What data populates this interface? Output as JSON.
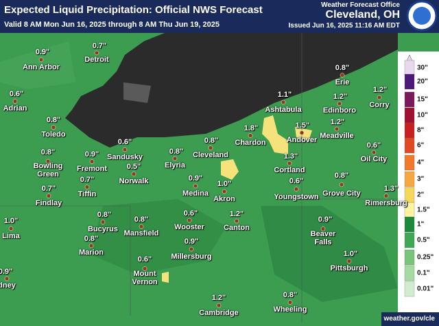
{
  "header": {
    "title": "Expected Liquid Precipitation: Official NWS Forecast",
    "subtitle": "Valid 8 AM Mon Jun 16, 2025 through 8 AM Thu Jun 19, 2025",
    "office": "Weather Forecast Office",
    "location": "Cleveland, OH",
    "issued": "Issued Jun 16, 2025 11:16 AM EDT"
  },
  "cities": [
    {
      "name": "Ann Arbor",
      "amount": "0.9\""
    },
    {
      "name": "Detroit",
      "amount": "0.7\""
    },
    {
      "name": "Adrian",
      "amount": "0.6\""
    },
    {
      "name": "Toledo",
      "amount": "0.8\""
    },
    {
      "name": "Bowling Green",
      "amount": "0.8\""
    },
    {
      "name": "Fremont",
      "amount": "0.9\""
    },
    {
      "name": "Sandusky",
      "amount": "0.6\""
    },
    {
      "name": "Norwalk",
      "amount": "0.5\""
    },
    {
      "name": "Elyria",
      "amount": "0.8\""
    },
    {
      "name": "Cleveland",
      "amount": "0.8\""
    },
    {
      "name": "Findlay",
      "amount": "0.7\""
    },
    {
      "name": "Tiffin",
      "amount": "0.7\""
    },
    {
      "name": "Medina",
      "amount": "0.9\""
    },
    {
      "name": "Akron",
      "amount": "1.0\""
    },
    {
      "name": "Lima",
      "amount": "1.0\""
    },
    {
      "name": "Bucyrus",
      "amount": "0.8\""
    },
    {
      "name": "Marion",
      "amount": "0.8\""
    },
    {
      "name": "Mansfield",
      "amount": "0.8\""
    },
    {
      "name": "Wooster",
      "amount": "0.6\""
    },
    {
      "name": "Canton",
      "amount": "1.2\""
    },
    {
      "name": "Millersburg",
      "amount": "0.9\""
    },
    {
      "name": "Mount Vernon",
      "amount": "0.6\""
    },
    {
      "name": "dney",
      "amount": "0.9\""
    },
    {
      "name": "Ashtabula",
      "amount": "1.1\""
    },
    {
      "name": "Chardon",
      "amount": "1.8\""
    },
    {
      "name": "Andover",
      "amount": "1.5\""
    },
    {
      "name": "Cortland",
      "amount": "1.3\""
    },
    {
      "name": "Youngstown",
      "amount": "0.6\""
    },
    {
      "name": "Erie",
      "amount": "0.8\""
    },
    {
      "name": "Edinboro",
      "amount": "1.2\""
    },
    {
      "name": "Corry",
      "amount": "1.2\""
    },
    {
      "name": "Meadville",
      "amount": "1.2\""
    },
    {
      "name": "Oil City",
      "amount": "0.6\""
    },
    {
      "name": "Grove City",
      "amount": "0.8\""
    },
    {
      "name": "Rimersburg",
      "amount": "1.3\""
    },
    {
      "name": "Beaver Falls",
      "amount": "0.9\""
    },
    {
      "name": "Pittsburgh",
      "amount": "1.0\""
    },
    {
      "name": "Wheeling",
      "amount": "0.8\""
    },
    {
      "name": "Cambridge",
      "amount": "1.2\""
    }
  ],
  "legend": {
    "labels": [
      "30\"",
      "20\"",
      "15\"",
      "10\"",
      "8\"",
      "6\"",
      "4\"",
      "3\"",
      "2\"",
      "1.5\"",
      "1\"",
      "0.5\"",
      "0.25\"",
      "0.1\"",
      "0.01\""
    ]
  },
  "footer": "weather.gov/cle"
}
